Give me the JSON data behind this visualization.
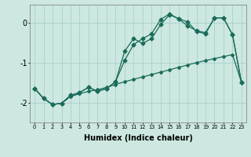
{
  "xlabel": "Humidex (Indice chaleur)",
  "background_color": "#cce8e0",
  "grid_color": "#aacfcf",
  "line_color": "#1a6b5a",
  "xlim": [
    -0.5,
    23.5
  ],
  "ylim": [
    -2.5,
    0.45
  ],
  "yticks": [
    0,
    -1,
    -2
  ],
  "xticks": [
    0,
    1,
    2,
    3,
    4,
    5,
    6,
    7,
    8,
    9,
    10,
    11,
    12,
    13,
    14,
    15,
    16,
    17,
    18,
    19,
    20,
    21,
    22,
    23
  ],
  "line1_x": [
    0,
    1,
    2,
    3,
    4,
    5,
    6,
    7,
    8,
    9,
    10,
    11,
    12,
    13,
    14,
    15,
    16,
    17,
    18,
    19,
    20,
    21,
    22,
    23
  ],
  "line1_y": [
    -1.65,
    -1.9,
    -2.05,
    -2.02,
    -1.85,
    -1.78,
    -1.72,
    -1.68,
    -1.62,
    -1.55,
    -1.48,
    -1.42,
    -1.36,
    -1.3,
    -1.24,
    -1.18,
    -1.12,
    -1.06,
    -1.0,
    -0.95,
    -0.9,
    -0.85,
    -0.8,
    -1.5
  ],
  "line2_x": [
    0,
    1,
    2,
    3,
    4,
    5,
    6,
    7,
    8,
    9,
    10,
    11,
    12,
    13,
    14,
    15,
    16,
    17,
    18,
    19,
    20,
    21,
    22,
    23
  ],
  "line2_y": [
    -1.65,
    -1.9,
    -2.05,
    -2.02,
    -1.82,
    -1.75,
    -1.62,
    -1.72,
    -1.65,
    -1.48,
    -0.72,
    -0.4,
    -0.52,
    -0.4,
    -0.05,
    0.2,
    0.1,
    0.02,
    -0.22,
    -0.28,
    0.12,
    0.12,
    -0.3,
    -1.5
  ],
  "line3_x": [
    0,
    1,
    2,
    3,
    4,
    5,
    6,
    7,
    8,
    9,
    10,
    11,
    12,
    13,
    14,
    15,
    16,
    17,
    18,
    19,
    20,
    21,
    22,
    23
  ],
  "line3_y": [
    -1.65,
    -1.9,
    -2.05,
    -2.02,
    -1.82,
    -1.75,
    -1.62,
    -1.72,
    -1.65,
    -1.48,
    -0.95,
    -0.55,
    -0.4,
    -0.28,
    0.08,
    0.22,
    0.1,
    -0.08,
    -0.2,
    -0.25,
    0.12,
    0.12,
    -0.3,
    -1.5
  ]
}
